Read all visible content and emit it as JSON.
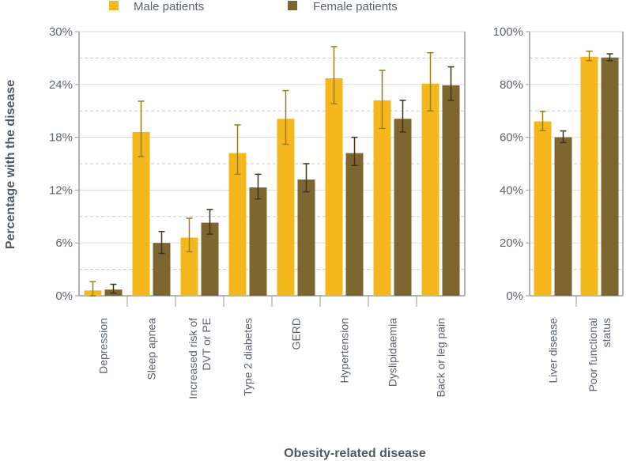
{
  "legend": {
    "male_label": "Male patients",
    "female_label": "Female patients"
  },
  "colors": {
    "male": "#f4b81e",
    "female": "#7d6630",
    "error_male": "#a07c14",
    "error_female": "#3f3416",
    "grid": "#c9c9c9",
    "axis": "#9b9b9b"
  },
  "chart_data": [
    {
      "type": "bar",
      "categories": [
        "Depression",
        "Sleep apnea",
        "Increased risk of DVT or PE",
        "Type 2 diabetes",
        "GERD",
        "Hypertension",
        "Dyslipidaemia",
        "Back or leg pain"
      ],
      "category_lines": [
        [
          "Depression"
        ],
        [
          "Sleep apnea"
        ],
        [
          "Increased risk of",
          "DVT or PE"
        ],
        [
          "Type 2 diabetes"
        ],
        [
          "GERD"
        ],
        [
          "Hypertension"
        ],
        [
          "Dyslipidaemia"
        ],
        [
          "Back or leg pain"
        ]
      ],
      "series": [
        {
          "name": "Male patients",
          "values": [
            0.6,
            18.6,
            6.6,
            16.2,
            20.1,
            24.7,
            22.2,
            24.1
          ],
          "err_low": [
            0.0,
            15.8,
            5.0,
            13.8,
            17.2,
            21.8,
            19.0,
            21.0
          ],
          "err_high": [
            1.6,
            22.1,
            8.8,
            19.4,
            23.3,
            28.3,
            25.6,
            27.6
          ]
        },
        {
          "name": "Female patients",
          "values": [
            0.7,
            6.0,
            8.3,
            12.3,
            13.2,
            16.2,
            20.1,
            23.9
          ],
          "err_low": [
            0.3,
            4.8,
            7.0,
            11.0,
            11.8,
            14.8,
            18.6,
            22.2
          ],
          "err_high": [
            1.3,
            7.3,
            9.8,
            13.8,
            15.0,
            18.0,
            22.2,
            26.0
          ]
        }
      ],
      "yticks": [
        "0%",
        "6%",
        "12%",
        "18%",
        "24%",
        "30%"
      ],
      "ylim": [
        0,
        30
      ],
      "grid": true
    },
    {
      "type": "bar",
      "categories": [
        "Liver disease",
        "Poor functional status"
      ],
      "category_lines": [
        [
          "Liver disease"
        ],
        [
          "Poor functional",
          "status"
        ]
      ],
      "series": [
        {
          "name": "Male patients",
          "values": [
            66,
            90.5
          ],
          "err_low": [
            62.5,
            89
          ],
          "err_high": [
            69.8,
            92.6
          ]
        },
        {
          "name": "Female patients",
          "values": [
            60,
            90.2
          ],
          "err_low": [
            58,
            89
          ],
          "err_high": [
            62.4,
            91.6
          ]
        }
      ],
      "yticks": [
        "0%",
        "20%",
        "40%",
        "60%",
        "80%",
        "100%"
      ],
      "ylim": [
        0,
        100
      ],
      "grid": true
    }
  ],
  "ylabel": "Percentage with the disease",
  "xlabel": "Obesity-related disease"
}
